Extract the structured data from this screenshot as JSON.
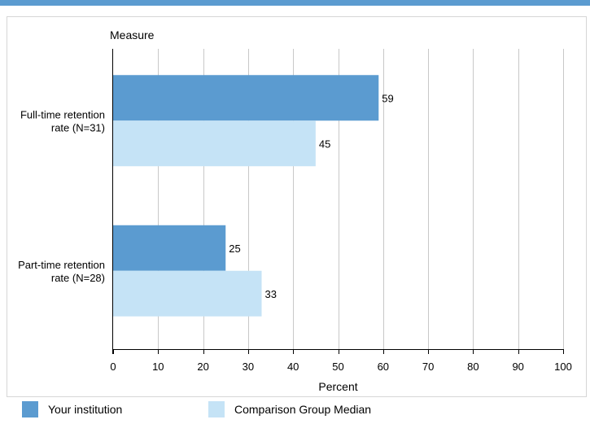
{
  "chart_data": {
    "type": "bar",
    "orientation": "horizontal",
    "y_axis_title": "Measure",
    "xlabel": "Percent",
    "xlim": [
      0,
      100
    ],
    "x_ticks": [
      0,
      10,
      20,
      30,
      40,
      50,
      60,
      70,
      80,
      90,
      100
    ],
    "grid": true,
    "legend_position": "bottom",
    "categories": [
      [
        "Full-time retention",
        "rate (N=31)"
      ],
      [
        "Part-time retention",
        "rate (N=28)"
      ]
    ],
    "series": [
      {
        "name": "Your institution",
        "color": "#5b9bd0",
        "values": [
          59,
          25
        ]
      },
      {
        "name": "Comparison Group Median",
        "color": "#c5e3f6",
        "values": [
          45,
          33
        ]
      }
    ]
  },
  "colors": {
    "accent": "#5b9bd0"
  }
}
